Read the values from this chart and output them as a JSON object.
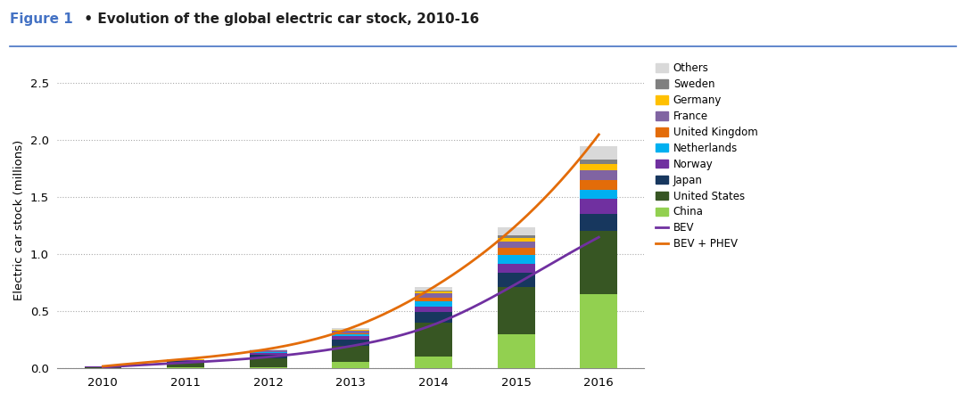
{
  "title_figure": "Figure 1",
  "title_bullet": " • ",
  "title_main": "Evolution of the global electric car stock, 2010-16",
  "ylabel": "Electric car stock (millions)",
  "years": [
    2010,
    2011,
    2012,
    2013,
    2014,
    2015,
    2016
  ],
  "bar_data": {
    "China": [
      0.001,
      0.008,
      0.013,
      0.058,
      0.107,
      0.3,
      0.648
    ],
    "United States": [
      0.01,
      0.044,
      0.079,
      0.14,
      0.295,
      0.414,
      0.56
    ],
    "Japan": [
      0.002,
      0.012,
      0.03,
      0.057,
      0.089,
      0.123,
      0.15
    ],
    "Norway": [
      0.001,
      0.005,
      0.011,
      0.025,
      0.05,
      0.082,
      0.13
    ],
    "Netherlands": [
      0.0,
      0.002,
      0.006,
      0.016,
      0.044,
      0.075,
      0.075
    ],
    "United Kingdom": [
      0.001,
      0.002,
      0.005,
      0.013,
      0.033,
      0.06,
      0.09
    ],
    "France": [
      0.001,
      0.003,
      0.011,
      0.02,
      0.037,
      0.057,
      0.084
    ],
    "Germany": [
      0.0,
      0.002,
      0.004,
      0.008,
      0.018,
      0.035,
      0.055
    ],
    "Sweden": [
      0.0,
      0.001,
      0.003,
      0.005,
      0.012,
      0.023,
      0.038
    ],
    "Others": [
      0.001,
      0.003,
      0.008,
      0.013,
      0.028,
      0.071,
      0.12
    ]
  },
  "bar_colors": {
    "China": "#92D050",
    "United States": "#375623",
    "Japan": "#17375E",
    "Norway": "#7030A0",
    "Netherlands": "#00B0F0",
    "United Kingdom": "#E36C09",
    "France": "#8064A2",
    "Germany": "#FFC000",
    "Sweden": "#808080",
    "Others": "#D9D9D9"
  },
  "bev_line": [
    0.01,
    0.05,
    0.1,
    0.195,
    0.383,
    0.74,
    1.15
  ],
  "bev_phev_line": [
    0.018,
    0.082,
    0.17,
    0.354,
    0.712,
    1.253,
    2.05
  ],
  "bev_color": "#7030A0",
  "bev_phev_color": "#E36C09",
  "ylim": [
    0,
    2.6
  ],
  "yticks": [
    0.0,
    0.5,
    1.0,
    1.5,
    2.0,
    2.5
  ],
  "bar_width": 0.45,
  "title_color": "#4472C4",
  "background_color": "#FFFFFF"
}
